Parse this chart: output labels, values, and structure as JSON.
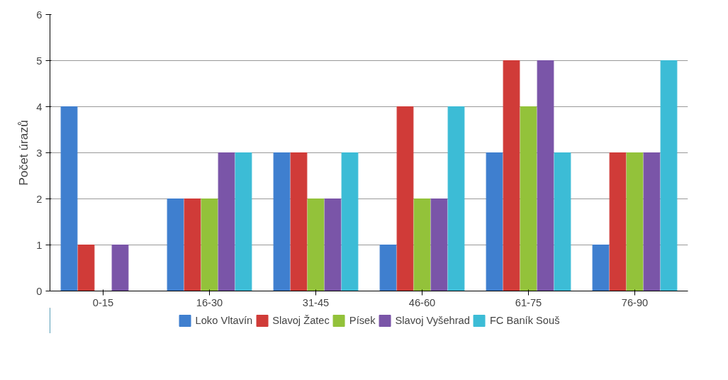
{
  "chart_data": {
    "type": "bar",
    "ylabel": "Počet úrazů",
    "categories": [
      "0-15",
      "16-30",
      "31-45",
      "46-60",
      "61-75",
      "76-90"
    ],
    "series": [
      {
        "name": "Loko Vltavín",
        "color": "#3f7fcf",
        "values": [
          4,
          2,
          3,
          1,
          3,
          1
        ]
      },
      {
        "name": "Slavoj Žatec",
        "color": "#d03b38",
        "values": [
          1,
          2,
          3,
          4,
          5,
          3
        ]
      },
      {
        "name": "Písek",
        "color": "#93c23a",
        "values": [
          0,
          2,
          2,
          2,
          4,
          3
        ]
      },
      {
        "name": "Slavoj Vyšehrad",
        "color": "#7a55a8",
        "values": [
          1,
          3,
          2,
          2,
          5,
          3
        ]
      },
      {
        "name": "FC Baník Souš",
        "color": "#3cbcd6",
        "values": [
          0,
          3,
          3,
          4,
          3,
          5
        ]
      }
    ],
    "ylim": [
      0,
      6
    ],
    "yticks": [
      0,
      1,
      2,
      3,
      4,
      5,
      6
    ],
    "grid": "y",
    "legend": "bottom"
  }
}
